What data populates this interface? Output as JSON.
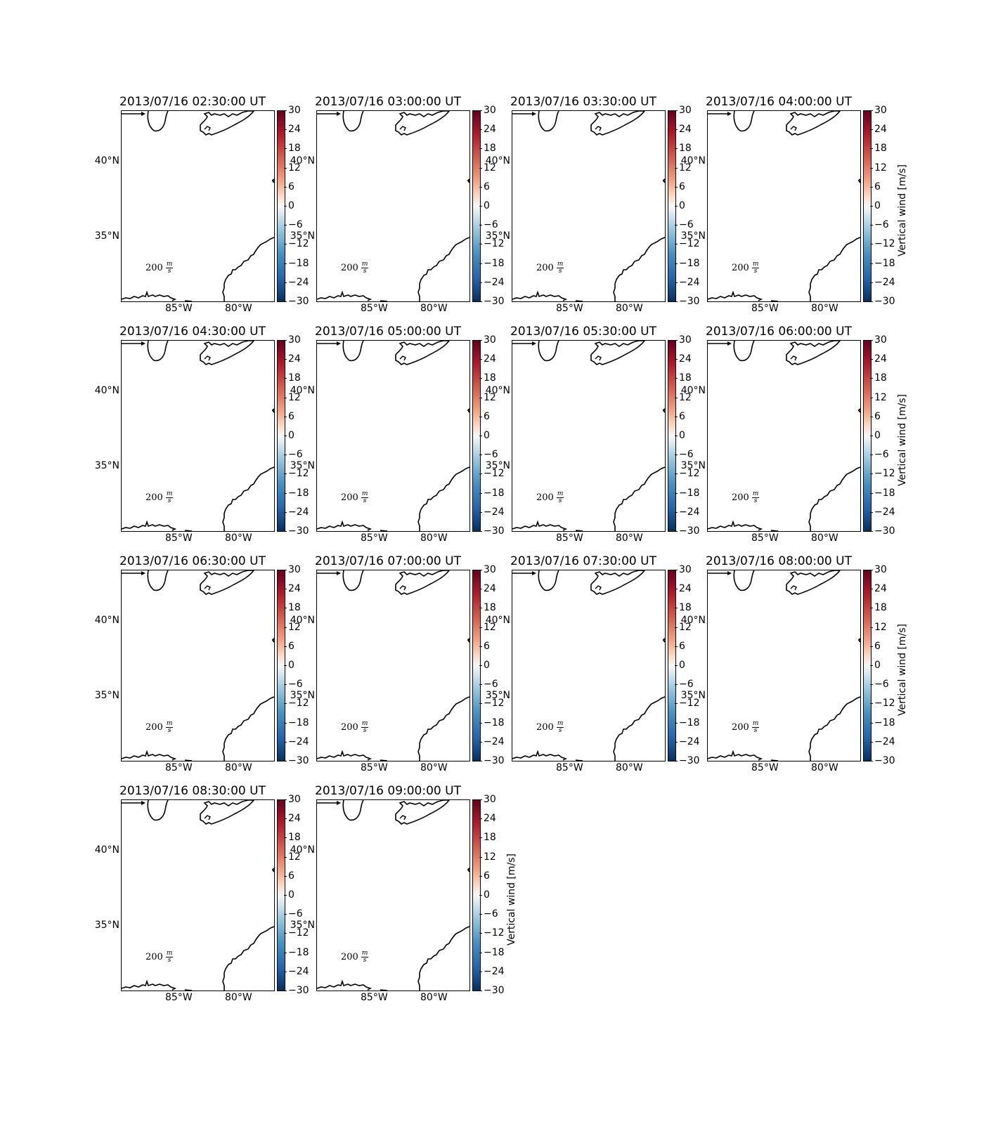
{
  "figure": {
    "panels": [
      {
        "title": "2013/07/16 02:30:00 UT"
      },
      {
        "title": "2013/07/16 03:00:00 UT"
      },
      {
        "title": "2013/07/16 03:30:00 UT"
      },
      {
        "title": "2013/07/16 04:00:00 UT"
      },
      {
        "title": "2013/07/16 04:30:00 UT"
      },
      {
        "title": "2013/07/16 05:00:00 UT"
      },
      {
        "title": "2013/07/16 05:30:00 UT"
      },
      {
        "title": "2013/07/16 06:00:00 UT"
      },
      {
        "title": "2013/07/16 06:30:00 UT"
      },
      {
        "title": "2013/07/16 07:00:00 UT"
      },
      {
        "title": "2013/07/16 07:30:00 UT"
      },
      {
        "title": "2013/07/16 08:00:00 UT"
      },
      {
        "title": "2013/07/16 08:30:00 UT"
      },
      {
        "title": "2013/07/16 09:00:00 UT"
      }
    ],
    "lat_labels": [
      "40°N",
      "35°N"
    ],
    "lon_labels": [
      "85°W",
      "80°W"
    ],
    "colorbar": {
      "label": "Vertical wind [m/s]",
      "ticks": [
        "30",
        "24",
        "18",
        "12",
        "6",
        "0",
        "−6",
        "−12",
        "−18",
        "−24",
        "−30"
      ],
      "range": [
        -30,
        30
      ],
      "colormap": "RdBu_r"
    },
    "quiver_key": {
      "value": "200",
      "unit_num": "m",
      "unit_den": "s"
    },
    "coast_color": "#000000"
  }
}
